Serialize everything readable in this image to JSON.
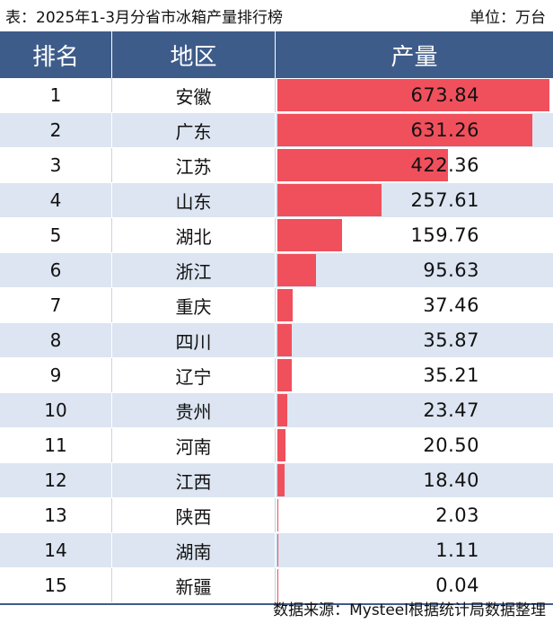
{
  "caption": {
    "title": "表：2025年1-3月分省市冰箱产量排行榜",
    "unit": "单位：万台"
  },
  "header": {
    "rank": "排名",
    "region": "地区",
    "production": "产量"
  },
  "colors": {
    "header_bg": "#3e5c8a",
    "bar": "#f0505c",
    "stripe": "#dce5f1"
  },
  "chart_data": {
    "type": "table",
    "max_value": 673.84,
    "rows": [
      {
        "rank": "1",
        "region": "安徽",
        "value": 673.84,
        "label": "673.84"
      },
      {
        "rank": "2",
        "region": "广东",
        "value": 631.26,
        "label": "631.26"
      },
      {
        "rank": "3",
        "region": "江苏",
        "value": 422.36,
        "label": "422.36"
      },
      {
        "rank": "4",
        "region": "山东",
        "value": 257.61,
        "label": "257.61"
      },
      {
        "rank": "5",
        "region": "湖北",
        "value": 159.76,
        "label": "159.76"
      },
      {
        "rank": "6",
        "region": "浙江",
        "value": 95.63,
        "label": "95.63"
      },
      {
        "rank": "7",
        "region": "重庆",
        "value": 37.46,
        "label": "37.46"
      },
      {
        "rank": "8",
        "region": "四川",
        "value": 35.87,
        "label": "35.87"
      },
      {
        "rank": "9",
        "region": "辽宁",
        "value": 35.21,
        "label": "35.21"
      },
      {
        "rank": "10",
        "region": "贵州",
        "value": 23.47,
        "label": "23.47"
      },
      {
        "rank": "11",
        "region": "河南",
        "value": 20.5,
        "label": "20.50"
      },
      {
        "rank": "12",
        "region": "江西",
        "value": 18.4,
        "label": "18.40"
      },
      {
        "rank": "13",
        "region": "陕西",
        "value": 2.03,
        "label": "2.03"
      },
      {
        "rank": "14",
        "region": "湖南",
        "value": 1.11,
        "label": "1.11"
      },
      {
        "rank": "15",
        "region": "新疆",
        "value": 0.04,
        "label": "0.04"
      }
    ]
  },
  "footer": {
    "source": "数据来源：Mysteel根据统计局数据整理"
  }
}
